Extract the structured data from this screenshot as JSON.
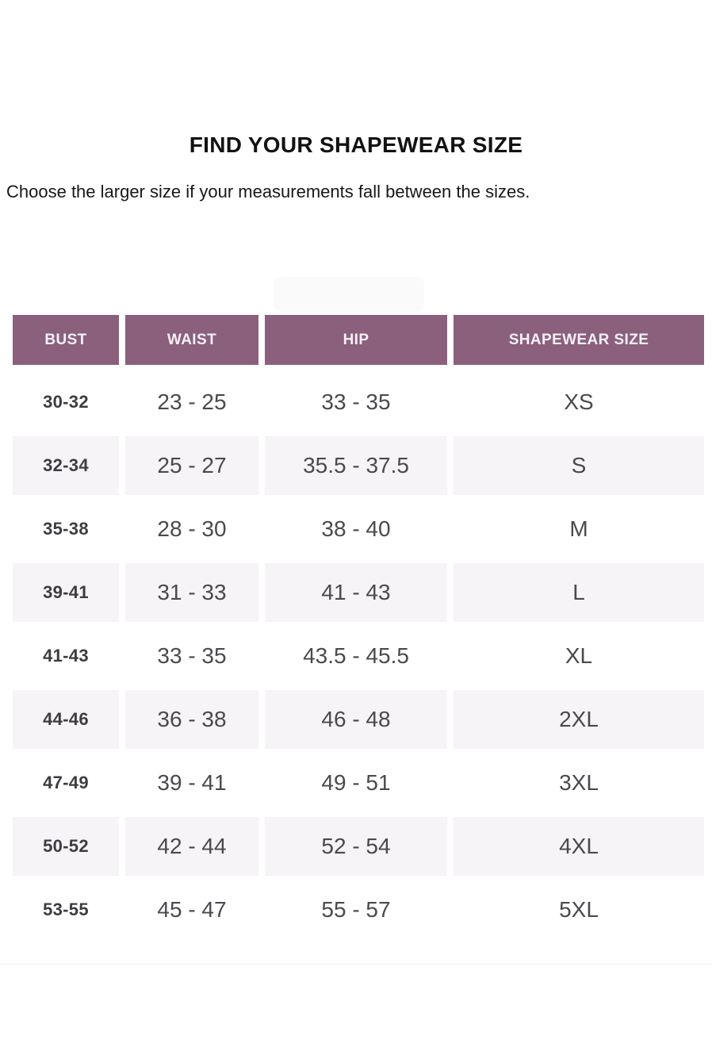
{
  "page": {
    "title": "FIND YOUR SHAPEWEAR SIZE",
    "subtitle": "Choose the larger size if your measurements fall between the sizes."
  },
  "colors": {
    "header_bg": "#8A607D",
    "header_text": "#F7F0F4",
    "alt_row_bg": "#F6F4F6",
    "value_text": "#4A494E",
    "bust_text": "#3D3C42"
  },
  "table": {
    "columns": [
      "BUST",
      "WAIST",
      "HIP",
      "SHAPEWEAR SIZE"
    ],
    "rows": [
      {
        "bust": "30-32",
        "waist": "23 - 25",
        "hip": "33 - 35",
        "size": "XS"
      },
      {
        "bust": "32-34",
        "waist": "25 - 27",
        "hip": "35.5 - 37.5",
        "size": "S"
      },
      {
        "bust": "35-38",
        "waist": "28 - 30",
        "hip": "38 - 40",
        "size": "M"
      },
      {
        "bust": "39-41",
        "waist": "31 - 33",
        "hip": "41 - 43",
        "size": "L"
      },
      {
        "bust": "41-43",
        "waist": "33 - 35",
        "hip": "43.5 - 45.5",
        "size": "XL"
      },
      {
        "bust": "44-46",
        "waist": "36 - 38",
        "hip": "46 - 48",
        "size": "2XL"
      },
      {
        "bust": "47-49",
        "waist": "39 - 41",
        "hip": "49 - 51",
        "size": "3XL"
      },
      {
        "bust": "50-52",
        "waist": "42 - 44",
        "hip": "52 - 54",
        "size": "4XL"
      },
      {
        "bust": "53-55",
        "waist": "45 - 47",
        "hip": "55 - 57",
        "size": "5XL"
      }
    ]
  }
}
